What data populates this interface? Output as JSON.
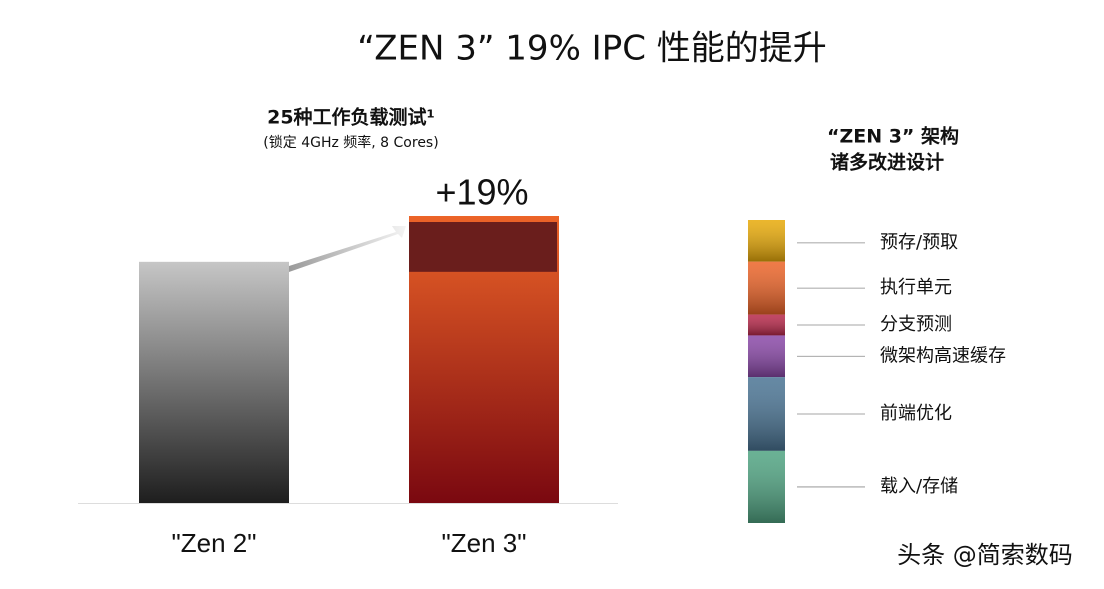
{
  "title": "“ZEN 3” 19% IPC 性能的提升",
  "chart_data": [
    {
      "type": "bar",
      "title": "25种工作负载测试¹",
      "subtitle": "(锁定 4GHz 频率, 8 Cores)",
      "annotation": "+19%",
      "categories": [
        "\"Zen 2\"",
        "\"Zen 3\""
      ],
      "values": [
        100,
        119
      ],
      "colors": [
        [
          "#c6c6c6",
          "#1e1e1e"
        ],
        [
          "#ec6428",
          "#7a0810"
        ]
      ]
    },
    {
      "type": "stacked-bar",
      "title_lines": [
        "“ZEN 3” 架构",
        "诸多改进设计"
      ],
      "series": [
        {
          "name": "预存/预取",
          "color": "#e8aa08",
          "values": [
            2.6
          ]
        },
        {
          "name": "执行单元",
          "color": "#ec6428",
          "values": [
            3.3
          ]
        },
        {
          "name": "分支预测",
          "color": "#b8284a",
          "values": [
            1.3
          ]
        },
        {
          "name": "微架构高速缓存",
          "color": "#8a48a8",
          "values": [
            2.6
          ]
        },
        {
          "name": "前端优化",
          "color": "#4a7494",
          "values": [
            4.6
          ]
        },
        {
          "name": "载入/存储",
          "color": "#50a482",
          "values": [
            4.5
          ]
        }
      ]
    }
  ],
  "watermark": "头条 @简索数码"
}
